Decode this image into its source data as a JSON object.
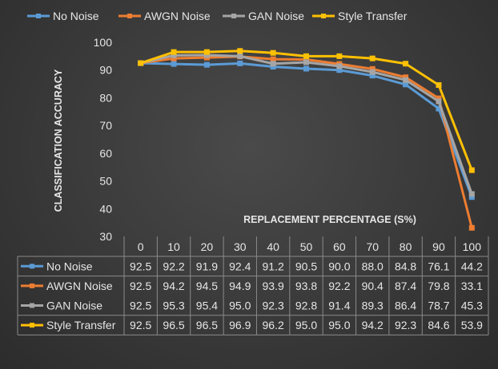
{
  "chart_data": {
    "type": "line",
    "title": "",
    "xlabel": "REPLACEMENT PERCENTAGE (S%)",
    "ylabel": "CLASSIFICATION ACCURACY",
    "ylim": [
      30,
      100
    ],
    "yticks": [
      30,
      40,
      50,
      60,
      70,
      80,
      90,
      100
    ],
    "categories": [
      "0",
      "10",
      "20",
      "30",
      "40",
      "50",
      "60",
      "70",
      "80",
      "90",
      "100"
    ],
    "legend_position": "top",
    "series": [
      {
        "name": "No Noise",
        "color": "#5b9bd5",
        "values": [
          92.5,
          92.2,
          91.9,
          92.4,
          91.2,
          90.5,
          90.0,
          88.0,
          84.8,
          76.1,
          44.2
        ]
      },
      {
        "name": "AWGN Noise",
        "color": "#ed7d31",
        "values": [
          92.5,
          94.2,
          94.5,
          94.9,
          93.9,
          93.8,
          92.2,
          90.4,
          87.4,
          79.8,
          33.1
        ]
      },
      {
        "name": "GAN Noise",
        "color": "#a5a5a5",
        "values": [
          92.5,
          95.3,
          95.4,
          95.0,
          92.3,
          92.8,
          91.4,
          89.3,
          86.4,
          78.7,
          45.3
        ]
      },
      {
        "name": "Style Transfer",
        "color": "#ffc000",
        "values": [
          92.5,
          96.5,
          96.5,
          96.9,
          96.2,
          95.0,
          95.0,
          94.2,
          92.3,
          84.6,
          53.9
        ]
      }
    ]
  }
}
